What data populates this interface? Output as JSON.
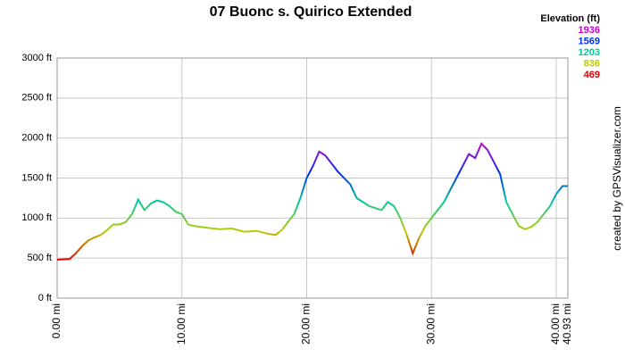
{
  "chart_data": {
    "type": "line",
    "title": "07 Buonc s. Quirico Extended",
    "legend_title": "Elevation (ft)",
    "color_scale": [
      {
        "value": 1936,
        "color": "#cc00cc"
      },
      {
        "value": 1569,
        "color": "#0033ee"
      },
      {
        "value": 1203,
        "color": "#00cc99"
      },
      {
        "value": 836,
        "color": "#bbcc00"
      },
      {
        "value": 469,
        "color": "#dd0000"
      }
    ],
    "watermark": "created by GPSVisualizer.com",
    "grid": true,
    "xlim": [
      0,
      40.93
    ],
    "ylim": [
      0,
      3000
    ],
    "xticks": [
      {
        "value": 0,
        "label": "0.00 mi"
      },
      {
        "value": 10,
        "label": "10.00 mi"
      },
      {
        "value": 20,
        "label": "20.00 mi"
      },
      {
        "value": 30,
        "label": "30.00 mi"
      },
      {
        "value": 40,
        "label": "40.00 mi"
      },
      {
        "value": 40.93,
        "label": "40.93 mi"
      }
    ],
    "yticks": [
      {
        "value": 0,
        "label": "0 ft"
      },
      {
        "value": 500,
        "label": "500 ft"
      },
      {
        "value": 1000,
        "label": "1000 ft"
      },
      {
        "value": 1500,
        "label": "1500 ft"
      },
      {
        "value": 2000,
        "label": "2000 ft"
      },
      {
        "value": 2500,
        "label": "2500 ft"
      },
      {
        "value": 3000,
        "label": "3000 ft"
      }
    ],
    "x": [
      0,
      1,
      1.5,
      2,
      2.5,
      3,
      3.5,
      4,
      4.5,
      5,
      5.5,
      6,
      6.5,
      7,
      7.5,
      8,
      8.5,
      9,
      9.5,
      10,
      10.5,
      11,
      12,
      13,
      14,
      15,
      16,
      17,
      17.5,
      18,
      18.5,
      19,
      19.5,
      20,
      20.5,
      21,
      21.5,
      22,
      22.5,
      23,
      23.5,
      24,
      25,
      26,
      26.5,
      27,
      27.5,
      28,
      28.5,
      29,
      29.5,
      30,
      31,
      32,
      33,
      33.5,
      34,
      34.5,
      35,
      35.5,
      36,
      36.5,
      37,
      37.5,
      38,
      38.5,
      39,
      39.5,
      40,
      40.5,
      40.93
    ],
    "values": [
      480,
      490,
      560,
      650,
      720,
      760,
      790,
      850,
      920,
      920,
      950,
      1050,
      1230,
      1100,
      1180,
      1220,
      1200,
      1150,
      1080,
      1050,
      920,
      900,
      880,
      860,
      870,
      830,
      840,
      800,
      790,
      850,
      950,
      1050,
      1250,
      1500,
      1650,
      1830,
      1780,
      1680,
      1580,
      1500,
      1420,
      1250,
      1150,
      1100,
      1200,
      1150,
      1000,
      800,
      560,
      750,
      900,
      1000,
      1200,
      1500,
      1800,
      1750,
      1930,
      1850,
      1700,
      1550,
      1200,
      1050,
      900,
      860,
      890,
      950,
      1050,
      1150,
      1300,
      1400,
      1400
    ]
  }
}
